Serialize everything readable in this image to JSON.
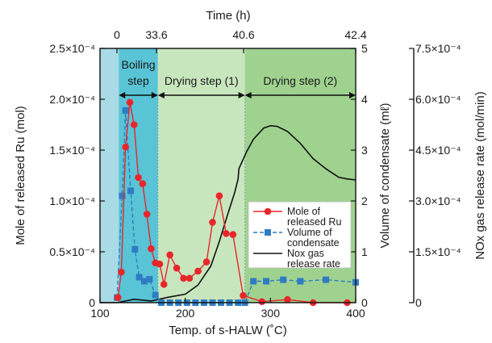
{
  "chart_data": {
    "type": "line",
    "top_axis": {
      "label": "Time (h)",
      "ticks": [
        {
          "x": 145,
          "label": "0"
        },
        {
          "x": 194,
          "label": "33.6"
        },
        {
          "x": 302,
          "label": "40.6"
        },
        {
          "x": 441,
          "label": "42.4"
        }
      ]
    },
    "x_axis": {
      "label": "Temp. of s-HALW (˚C)",
      "range": [
        100,
        400
      ],
      "ticks": [
        "100",
        "200",
        "300",
        "400"
      ]
    },
    "y_left": {
      "label": "Mole of released Ru (mol)",
      "range": [
        0,
        0.00025
      ],
      "ticks": [
        "0",
        "0.5×10⁻⁴",
        "1.0×10⁻⁴",
        "1.5×10⁻⁴",
        "2.0×10⁻⁴",
        "2.5×10⁻⁴"
      ]
    },
    "y_right1": {
      "label": "Volume of condensate (mℓ)",
      "range": [
        0,
        5
      ],
      "ticks": [
        "0",
        "1",
        "2",
        "3",
        "4",
        "5"
      ]
    },
    "y_right2": {
      "label": "NOx gas release rate (mol/min)",
      "range": [
        0,
        0.00075
      ],
      "ticks": [
        "0",
        "1.5×10⁻⁴",
        "3.0×10⁻⁴",
        "4.5×10⁻⁴",
        "6.0×10⁻⁴",
        "7.5×10⁻⁴"
      ]
    },
    "stages": [
      {
        "name": "",
        "x0": 100,
        "x1": 122,
        "color": "#a8dbe6"
      },
      {
        "name": "Boiling step",
        "x0": 122,
        "x1": 168,
        "color": "#58c4d6"
      },
      {
        "name": "Drying step (1)",
        "x0": 168,
        "x1": 270,
        "color": "#c8e6bd"
      },
      {
        "name": "Drying step (2)",
        "x0": 270,
        "x1": 400,
        "color": "#9fd28f"
      }
    ],
    "series": [
      {
        "name": "Mole of released Ru",
        "axis": "left",
        "color": "#e8262b",
        "marker": "circle",
        "style": "solid",
        "points": [
          [
            121,
            5e-06
          ],
          [
            125,
            3e-05
          ],
          [
            130,
            0.000153
          ],
          [
            135,
            0.000197
          ],
          [
            140,
            0.000175
          ],
          [
            145,
            0.000123
          ],
          [
            150,
            0.000117
          ],
          [
            155,
            8.7e-05
          ],
          [
            160,
            5.3e-05
          ],
          [
            165,
            3.9e-05
          ],
          [
            170,
            3.8e-05
          ],
          [
            175,
            1.8e-05
          ],
          [
            182,
            4.7e-05
          ],
          [
            190,
            3.4e-05
          ],
          [
            198,
            2.4e-05
          ],
          [
            205,
            2.4e-05
          ],
          [
            215,
            3.1e-05
          ],
          [
            225,
            4e-05
          ],
          [
            232,
            7.9e-05
          ],
          [
            240,
            0.000105
          ],
          [
            248,
            6.8e-05
          ],
          [
            256,
            6.7e-05
          ],
          [
            268,
            7e-06
          ],
          [
            290,
            1e-06
          ],
          [
            320,
            3e-06
          ],
          [
            350,
            0.0
          ],
          [
            390,
            0.0
          ]
        ]
      },
      {
        "name": "Volume of condensate",
        "axis": "right1",
        "color": "#2f7cc4",
        "marker": "square",
        "style": "dashed",
        "points": [
          [
            120,
            0.1
          ],
          [
            126,
            2.1
          ],
          [
            130,
            3.78
          ],
          [
            136,
            2.2
          ],
          [
            141,
            1.05
          ],
          [
            146,
            0.5
          ],
          [
            152,
            0.42
          ],
          [
            158,
            0.46
          ],
          [
            165,
            0.15
          ],
          [
            172,
            0.0
          ],
          [
            182,
            0.0
          ],
          [
            192,
            0.0
          ],
          [
            202,
            0.0
          ],
          [
            212,
            0.0
          ],
          [
            222,
            0.0
          ],
          [
            232,
            0.0
          ],
          [
            242,
            0.0
          ],
          [
            252,
            0.0
          ],
          [
            262,
            0.0
          ],
          [
            270,
            0.0
          ],
          [
            280,
            0.42
          ],
          [
            295,
            0.42
          ],
          [
            315,
            0.45
          ],
          [
            335,
            0.42
          ],
          [
            365,
            0.45
          ],
          [
            400,
            0.4
          ]
        ]
      },
      {
        "name": "Nox gas release rate",
        "axis": "right2",
        "color": "#111111",
        "marker": "none",
        "style": "solid",
        "points": [
          [
            100,
            0.0
          ],
          [
            120,
            0.0
          ],
          [
            140,
            1e-05
          ],
          [
            160,
            5e-06
          ],
          [
            180,
            1.6e-05
          ],
          [
            200,
            2.5e-05
          ],
          [
            215,
            5.2e-05
          ],
          [
            230,
            0.000108
          ],
          [
            240,
            0.00018
          ],
          [
            250,
            0.000262
          ],
          [
            258,
            0.000325
          ],
          [
            262,
            0.000365
          ],
          [
            263,
            0.000395
          ],
          [
            266,
            0.000412
          ],
          [
            272,
            0.000445
          ],
          [
            280,
            0.000482
          ],
          [
            292,
            0.000515
          ],
          [
            300,
            0.000522
          ],
          [
            308,
            0.00052
          ],
          [
            320,
            0.000505
          ],
          [
            335,
            0.00047
          ],
          [
            350,
            0.000425
          ],
          [
            365,
            0.000395
          ],
          [
            380,
            0.00037
          ],
          [
            390,
            0.000365
          ],
          [
            400,
            0.000362
          ]
        ]
      }
    ],
    "legend": {
      "entries": [
        "Mole of\nreleased Ru",
        "Volume of\ncondensate",
        "Nox gas\nrelease rate"
      ],
      "position": "center-right"
    }
  }
}
